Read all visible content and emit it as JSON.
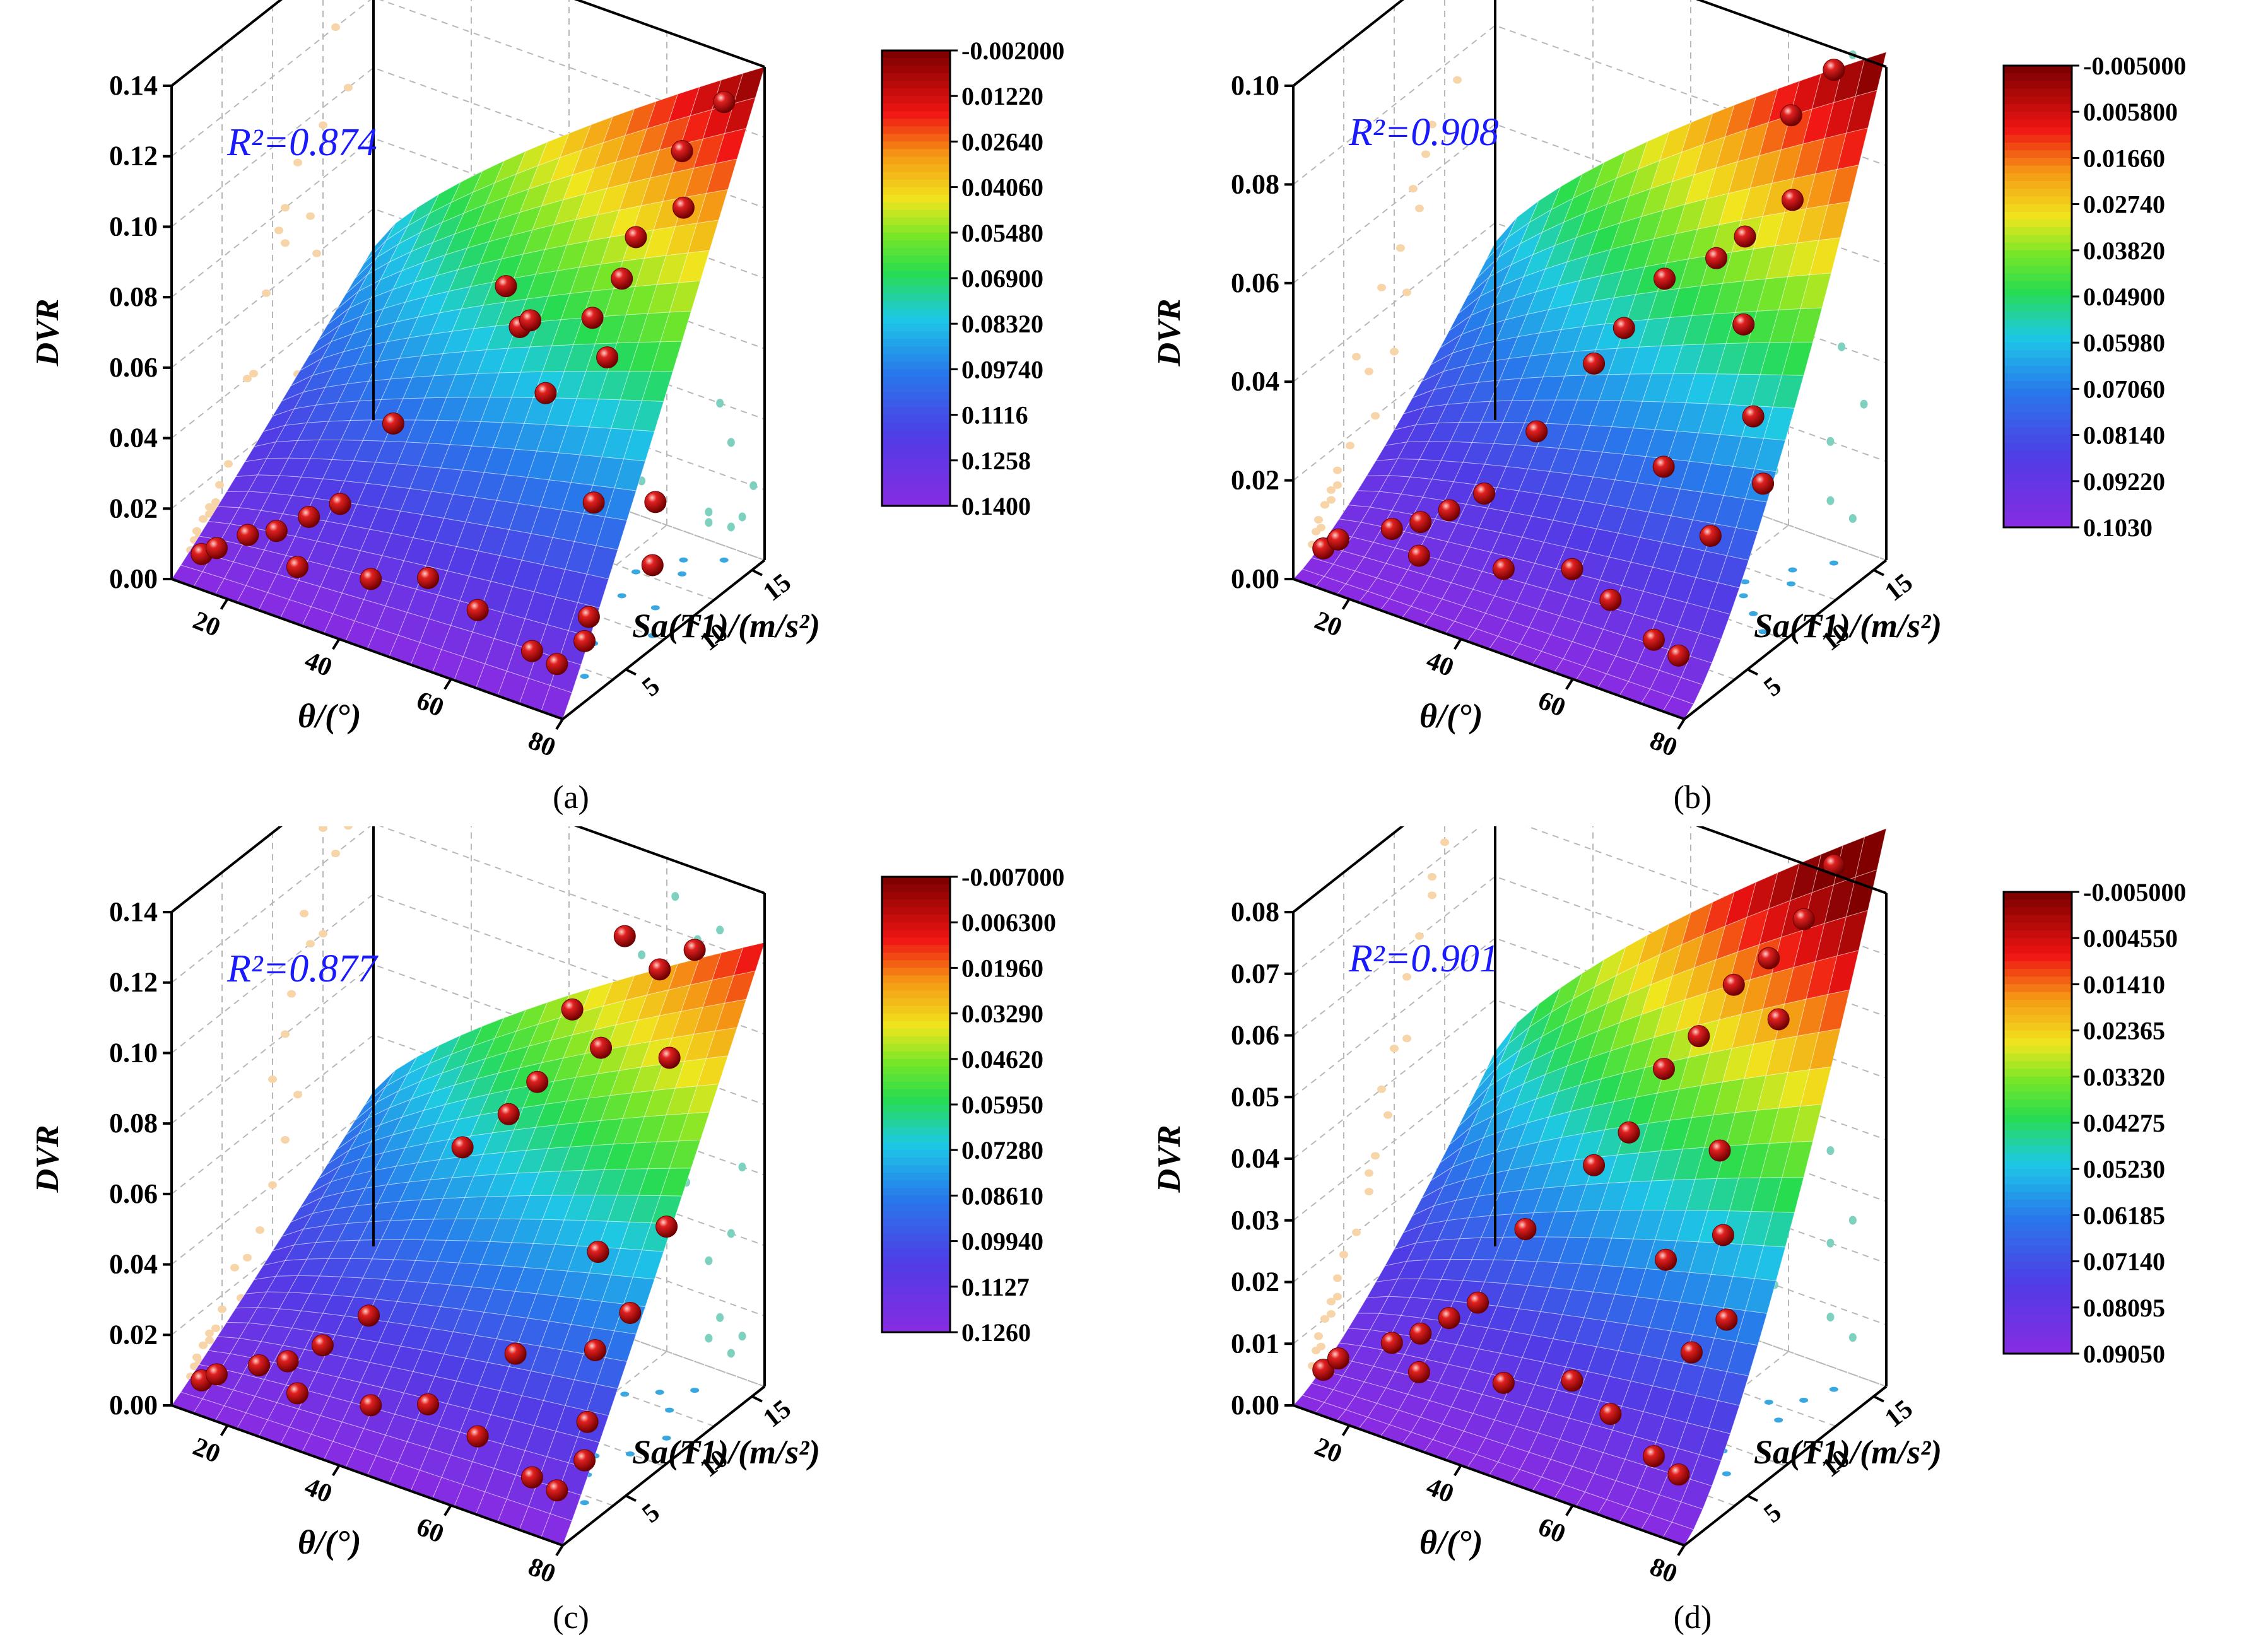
{
  "figure": {
    "panels": [
      {
        "id": "a",
        "caption": "(a)"
      },
      {
        "id": "b",
        "caption": "(b)"
      },
      {
        "id": "c",
        "caption": "(c)"
      },
      {
        "id": "d",
        "caption": "(d)"
      }
    ]
  },
  "chart_data": [
    {
      "type": "scatter",
      "subtype": "3d-surface-fit",
      "panel": "(a)",
      "r2_label": "R²=0.874",
      "r2": 0.874,
      "zlabel": "DVR",
      "xlabel": "θ/(°)",
      "ylabel": "Sa(T1)/(m/s²)",
      "zlim": [
        0.0,
        0.14
      ],
      "z_ticks": [
        "0.00",
        "0.02",
        "0.04",
        "0.06",
        "0.08",
        "0.10",
        "0.12",
        "0.14"
      ],
      "x_ticks": [
        "20",
        "40",
        "60",
        "80"
      ],
      "y_ticks": [
        "5",
        "10",
        "15"
      ],
      "xlim": [
        10,
        80
      ],
      "ylim": [
        0,
        16
      ],
      "colorbar_labels": [
        "-0.002000",
        "0.01220",
        "0.02640",
        "0.04060",
        "0.05480",
        "0.06900",
        "0.08320",
        "0.09740",
        "0.1116",
        "0.1258",
        "0.1400"
      ],
      "points": [
        [
          12,
          1.5,
          0.004
        ],
        [
          14,
          1.8,
          0.006
        ],
        [
          18,
          2.5,
          0.01
        ],
        [
          22,
          3.0,
          0.012
        ],
        [
          26,
          3.8,
          0.016
        ],
        [
          30,
          4.5,
          0.02
        ],
        [
          35,
          6.5,
          0.04
        ],
        [
          28,
          2.0,
          0.008
        ],
        [
          40,
          2.5,
          0.01
        ],
        [
          48,
          3.5,
          0.012
        ],
        [
          58,
          3.0,
          0.01
        ],
        [
          70,
          2.0,
          0.008
        ],
        [
          74,
          2.2,
          0.006
        ],
        [
          76,
          3.5,
          0.01
        ],
        [
          60,
          7.5,
          0.06
        ],
        [
          52,
          9.0,
          0.07
        ],
        [
          55,
          8.5,
          0.075
        ],
        [
          65,
          9.0,
          0.08
        ],
        [
          68,
          10,
          0.09
        ],
        [
          66,
          12,
          0.095
        ],
        [
          70,
          14,
          0.1
        ],
        [
          72,
          13,
          0.12
        ],
        [
          75,
          15,
          0.13
        ],
        [
          45,
          11,
          0.072
        ],
        [
          62,
          11.5,
          0.06
        ],
        [
          72,
          6,
          0.04
        ],
        [
          78,
          8,
          0.02
        ],
        [
          74,
          10,
          0.03
        ],
        [
          70,
          6.5,
          0.005
        ]
      ]
    },
    {
      "type": "scatter",
      "subtype": "3d-surface-fit",
      "panel": "(b)",
      "r2_label": "R²=0.908",
      "r2": 0.908,
      "zlabel": "DVR",
      "xlabel": "θ/(°)",
      "ylabel": "Sa(T1)/(m/s²)",
      "zlim": [
        0.0,
        0.1
      ],
      "z_ticks": [
        "0.00",
        "0.02",
        "0.04",
        "0.06",
        "0.08",
        "0.10"
      ],
      "x_ticks": [
        "20",
        "40",
        "60",
        "80"
      ],
      "y_ticks": [
        "5",
        "10",
        "15"
      ],
      "xlim": [
        10,
        80
      ],
      "ylim": [
        0,
        16
      ],
      "colorbar_labels": [
        "-0.005000",
        "0.005800",
        "0.01660",
        "0.02740",
        "0.03820",
        "0.04900",
        "0.05980",
        "0.07060",
        "0.08140",
        "0.09220",
        "0.1030"
      ],
      "points": [
        [
          12,
          1.5,
          0.004
        ],
        [
          14,
          1.8,
          0.006
        ],
        [
          22,
          2.5,
          0.01
        ],
        [
          26,
          3.0,
          0.012
        ],
        [
          30,
          3.5,
          0.015
        ],
        [
          34,
          4.5,
          0.018
        ],
        [
          40,
          6.0,
          0.03
        ],
        [
          28,
          2.0,
          0.008
        ],
        [
          42,
          2.5,
          0.01
        ],
        [
          52,
          3.5,
          0.012
        ],
        [
          60,
          3.0,
          0.01
        ],
        [
          70,
          2.0,
          0.008
        ],
        [
          74,
          2.2,
          0.006
        ],
        [
          48,
          7.0,
          0.045
        ],
        [
          50,
          8.5,
          0.05
        ],
        [
          55,
          9.5,
          0.06
        ],
        [
          62,
          10.5,
          0.065
        ],
        [
          66,
          11,
          0.07
        ],
        [
          70,
          13,
          0.075
        ],
        [
          74,
          14.5,
          0.1
        ],
        [
          72,
          12,
          0.095
        ],
        [
          68,
          10,
          0.055
        ],
        [
          72,
          9,
          0.04
        ],
        [
          76,
          8,
          0.03
        ],
        [
          70,
          6.5,
          0.02
        ],
        [
          65,
          5,
          0.035
        ]
      ]
    },
    {
      "type": "scatter",
      "subtype": "3d-surface-fit",
      "panel": "(c)",
      "r2_label": "R²=0.877",
      "r2": 0.877,
      "zlabel": "DVR",
      "xlabel": "θ/(°)",
      "ylabel": "Sa(T1)/(m/s²)",
      "zlim": [
        0.0,
        0.14
      ],
      "z_ticks": [
        "0.00",
        "0.02",
        "0.04",
        "0.06",
        "0.08",
        "0.10",
        "0.12",
        "0.14"
      ],
      "x_ticks": [
        "20",
        "40",
        "60",
        "80"
      ],
      "y_ticks": [
        "5",
        "10",
        "15"
      ],
      "xlim": [
        10,
        80
      ],
      "ylim": [
        0,
        16
      ],
      "colorbar_labels": [
        "-0.007000",
        "0.006300",
        "0.01960",
        "0.03290",
        "0.04620",
        "0.05950",
        "0.07280",
        "0.08610",
        "0.09940",
        "0.1127",
        "0.1260"
      ],
      "points": [
        [
          12,
          1.5,
          0.004
        ],
        [
          14,
          1.8,
          0.006
        ],
        [
          20,
          2.5,
          0.01
        ],
        [
          24,
          3.0,
          0.012
        ],
        [
          28,
          4.0,
          0.016
        ],
        [
          34,
          5.0,
          0.025
        ],
        [
          28,
          2.0,
          0.008
        ],
        [
          40,
          2.5,
          0.01
        ],
        [
          48,
          3.5,
          0.012
        ],
        [
          58,
          3.0,
          0.01
        ],
        [
          70,
          2.0,
          0.008
        ],
        [
          74,
          2.2,
          0.006
        ],
        [
          76,
          3.5,
          0.012
        ],
        [
          44,
          8,
          0.07
        ],
        [
          50,
          9,
          0.08
        ],
        [
          54,
          9.5,
          0.09
        ],
        [
          58,
          10.5,
          0.11
        ],
        [
          62,
          11,
          0.1
        ],
        [
          64,
          12,
          0.13
        ],
        [
          68,
          13,
          0.12
        ],
        [
          72,
          14,
          0.125
        ],
        [
          72,
          12,
          0.1
        ],
        [
          76,
          10,
          0.06
        ],
        [
          74,
          8,
          0.04
        ],
        [
          70,
          7,
          0.03
        ],
        [
          66,
          9,
          0.05
        ],
        [
          58,
          6,
          0.025
        ],
        [
          72,
          5.5,
          0.015
        ]
      ]
    },
    {
      "type": "scatter",
      "subtype": "3d-surface-fit",
      "panel": "(d)",
      "r2_label": "R²=0.901",
      "r2": 0.901,
      "zlabel": "DVR",
      "xlabel": "θ/(°)",
      "ylabel": "Sa(T1)/(m/s²)",
      "zlim": [
        0.0,
        0.08
      ],
      "z_ticks": [
        "0.00",
        "0.01",
        "0.02",
        "0.03",
        "0.04",
        "0.05",
        "0.06",
        "0.07",
        "0.08"
      ],
      "x_ticks": [
        "20",
        "40",
        "60",
        "80"
      ],
      "y_ticks": [
        "5",
        "10",
        "15"
      ],
      "xlim": [
        10,
        80
      ],
      "ylim": [
        0,
        16
      ],
      "colorbar_labels": [
        "-0.005000",
        "0.004550",
        "0.01410",
        "0.02365",
        "0.03320",
        "0.04275",
        "0.05230",
        "0.06185",
        "0.07140",
        "0.08095",
        "0.09050"
      ],
      "points": [
        [
          12,
          1.5,
          0.004
        ],
        [
          14,
          1.8,
          0.006
        ],
        [
          22,
          2.5,
          0.01
        ],
        [
          26,
          3.0,
          0.012
        ],
        [
          30,
          3.5,
          0.015
        ],
        [
          34,
          4.0,
          0.018
        ],
        [
          38,
          6.0,
          0.028
        ],
        [
          28,
          2.0,
          0.008
        ],
        [
          42,
          2.5,
          0.01
        ],
        [
          52,
          3.5,
          0.012
        ],
        [
          60,
          3.0,
          0.01
        ],
        [
          70,
          2.0,
          0.008
        ],
        [
          74,
          2.2,
          0.006
        ],
        [
          48,
          7,
          0.04
        ],
        [
          52,
          8,
          0.045
        ],
        [
          56,
          9,
          0.055
        ],
        [
          60,
          10,
          0.06
        ],
        [
          64,
          11,
          0.068
        ],
        [
          68,
          12,
          0.072
        ],
        [
          72,
          13,
          0.078
        ],
        [
          74,
          14.5,
          0.085
        ],
        [
          72,
          11,
          0.065
        ],
        [
          66,
          9,
          0.045
        ],
        [
          70,
          7.5,
          0.035
        ],
        [
          74,
          6,
          0.025
        ],
        [
          70,
          5,
          0.02
        ],
        [
          62,
          6.5,
          0.03
        ]
      ]
    }
  ]
}
